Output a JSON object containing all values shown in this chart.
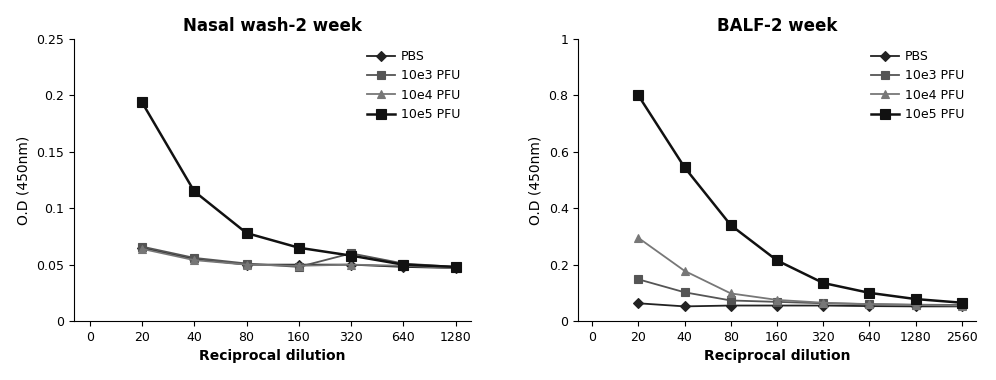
{
  "left": {
    "title": "Nasal wash-2 week",
    "xlabel": "Reciprocal dilution",
    "ylabel": "O.D (450nm)",
    "x_labels": [
      "0",
      "20",
      "40",
      "80",
      "160",
      "320",
      "640",
      "1280"
    ],
    "x_data_indices": [
      1,
      2,
      3,
      4,
      5,
      6,
      7
    ],
    "ylim": [
      0,
      0.25
    ],
    "yticks": [
      0,
      0.05,
      0.1,
      0.15,
      0.2,
      0.25
    ],
    "ytick_labels": [
      "0",
      "0.05",
      "0.1",
      "0.15",
      "0.2",
      "0.25"
    ],
    "series": [
      {
        "label": "PBS",
        "marker": "D",
        "markersize": 5,
        "color": "#222222",
        "linewidth": 1.3,
        "markerfill": "#222222",
        "values": [
          0.065,
          0.055,
          0.05,
          0.05,
          0.05,
          0.048,
          0.047
        ]
      },
      {
        "label": "10e3 PFU",
        "marker": "s",
        "markersize": 6,
        "color": "#555555",
        "linewidth": 1.3,
        "markerfill": "#555555",
        "values": [
          0.066,
          0.056,
          0.051,
          0.048,
          0.06,
          0.051,
          0.048
        ]
      },
      {
        "label": "10e4 PFU",
        "marker": "^",
        "markersize": 6,
        "color": "#777777",
        "linewidth": 1.3,
        "markerfill": "#777777",
        "values": [
          0.064,
          0.054,
          0.05,
          0.049,
          0.05,
          0.049,
          0.047
        ]
      },
      {
        "label": "10e5 PFU",
        "marker": "s",
        "markersize": 7,
        "color": "#111111",
        "linewidth": 1.8,
        "markerfill": "#111111",
        "values": [
          0.194,
          0.115,
          0.078,
          0.065,
          0.058,
          0.05,
          0.048
        ]
      }
    ]
  },
  "right": {
    "title": "BALF-2 week",
    "xlabel": "Reciprocal dilution",
    "ylabel": "O.D (450nm)",
    "x_labels": [
      "0",
      "20",
      "40",
      "80",
      "160",
      "320",
      "640",
      "1280",
      "2560"
    ],
    "x_data_indices": [
      1,
      2,
      3,
      4,
      5,
      6,
      7,
      8
    ],
    "ylim": [
      0,
      1.0
    ],
    "yticks": [
      0,
      0.2,
      0.4,
      0.6,
      0.8,
      1.0
    ],
    "ytick_labels": [
      "0",
      "0.2",
      "0.4",
      "0.6",
      "0.8",
      "1"
    ],
    "series": [
      {
        "label": "PBS",
        "marker": "D",
        "markersize": 5,
        "color": "#222222",
        "linewidth": 1.3,
        "markerfill": "#222222",
        "values": [
          0.063,
          0.052,
          0.055,
          0.055,
          0.055,
          0.053,
          0.052,
          0.052
        ]
      },
      {
        "label": "10e3 PFU",
        "marker": "s",
        "markersize": 6,
        "color": "#555555",
        "linewidth": 1.3,
        "markerfill": "#555555",
        "values": [
          0.148,
          0.102,
          0.073,
          0.068,
          0.063,
          0.06,
          0.058,
          0.057
        ]
      },
      {
        "label": "10e4 PFU",
        "marker": "^",
        "markersize": 6,
        "color": "#777777",
        "linewidth": 1.3,
        "markerfill": "#777777",
        "values": [
          0.295,
          0.178,
          0.098,
          0.075,
          0.065,
          0.06,
          0.057,
          0.055
        ]
      },
      {
        "label": "10e5 PFU",
        "marker": "s",
        "markersize": 7,
        "color": "#111111",
        "linewidth": 1.8,
        "markerfill": "#111111",
        "values": [
          0.8,
          0.545,
          0.34,
          0.215,
          0.135,
          0.1,
          0.078,
          0.065
        ]
      }
    ]
  },
  "background_color": "#ffffff",
  "title_fontsize": 12,
  "label_fontsize": 10,
  "tick_fontsize": 9,
  "legend_fontsize": 9
}
